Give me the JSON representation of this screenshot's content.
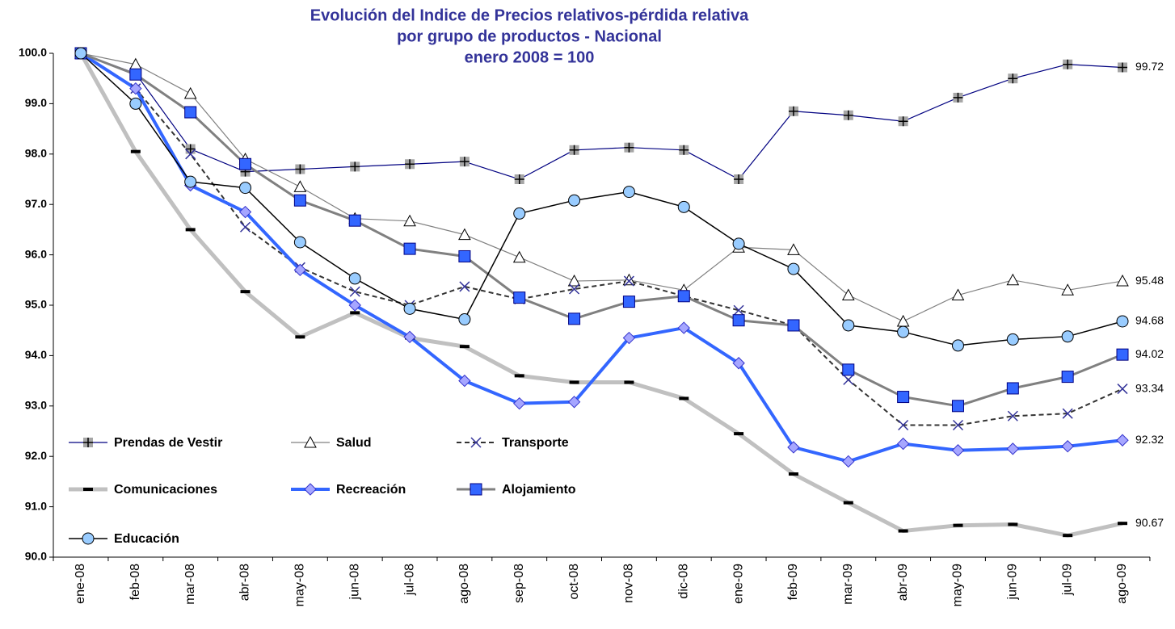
{
  "chart_data": {
    "type": "line",
    "title": [
      "Evolución del Indice de Precios relativos-pérdida relativa",
      "por grupo de productos - Nacional",
      "enero 2008 = 100"
    ],
    "categories": [
      "ene-08",
      "feb-08",
      "mar-08",
      "abr-08",
      "may-08",
      "jun-08",
      "jul-08",
      "ago-08",
      "sep-08",
      "oct-08",
      "nov-08",
      "dic-08",
      "ene-09",
      "feb-09",
      "mar-09",
      "abr-09",
      "may-09",
      "jun-09",
      "jul-09",
      "ago-09"
    ],
    "ylim": [
      90,
      100
    ],
    "yticks": [
      {
        "value": 90,
        "label": "90.0"
      },
      {
        "value": 91,
        "label": "91.0"
      },
      {
        "value": 92,
        "label": "92.0"
      },
      {
        "value": 93,
        "label": "93.0"
      },
      {
        "value": 94,
        "label": "94.0"
      },
      {
        "value": 95,
        "label": "95.0"
      },
      {
        "value": 96,
        "label": "96.0"
      },
      {
        "value": 97,
        "label": "97.0"
      },
      {
        "value": 98,
        "label": "98.0"
      },
      {
        "value": 99,
        "label": "99.0"
      },
      {
        "value": 100,
        "label": "100.0"
      }
    ],
    "grid": false,
    "legend": "lower left",
    "label_last": true,
    "series": [
      {
        "name": "Prendas de Vestir",
        "color": "#000080",
        "line_width": 1.2,
        "dash": false,
        "marker": "plus-square",
        "marker_color": "#a6a6a6",
        "values": [
          100,
          99.6,
          98.1,
          97.65,
          97.7,
          97.75,
          97.8,
          97.85,
          97.5,
          98.08,
          98.13,
          98.08,
          97.5,
          98.85,
          98.77,
          98.65,
          99.12,
          99.5,
          99.78,
          99.72
        ]
      },
      {
        "name": "Salud",
        "color": "#808080",
        "line_width": 1.2,
        "dash": false,
        "marker": "triangle",
        "marker_color": "#ffffff",
        "values": [
          100,
          99.78,
          99.2,
          97.9,
          97.35,
          96.72,
          96.67,
          96.4,
          95.95,
          95.48,
          95.5,
          95.3,
          96.15,
          96.1,
          95.2,
          94.68,
          95.2,
          95.5,
          95.3,
          95.48
        ]
      },
      {
        "name": "Transporte",
        "color": "#333333",
        "line_width": 2,
        "dash": true,
        "marker": "x",
        "marker_color": "#333399",
        "values": [
          100,
          99.3,
          98.0,
          96.55,
          95.75,
          95.27,
          95.0,
          95.37,
          95.12,
          95.32,
          95.48,
          95.18,
          94.9,
          94.6,
          93.52,
          92.62,
          92.62,
          92.8,
          92.85,
          93.34
        ]
      },
      {
        "name": "Comunicaciones",
        "color": "#c0c0c0",
        "line_width": 5,
        "dash": false,
        "marker": "dash",
        "marker_color": "#000000",
        "values": [
          100,
          98.05,
          96.5,
          95.27,
          94.37,
          94.85,
          94.35,
          94.18,
          93.6,
          93.47,
          93.47,
          93.15,
          92.45,
          91.65,
          91.08,
          90.52,
          90.63,
          90.65,
          90.43,
          90.67
        ]
      },
      {
        "name": "Recreación",
        "color": "#3366ff",
        "line_width": 4,
        "dash": false,
        "marker": "diamond",
        "marker_color": "#a6a6ff",
        "values": [
          100,
          99.3,
          97.38,
          96.85,
          95.7,
          95.0,
          94.37,
          93.5,
          93.05,
          93.08,
          94.35,
          94.55,
          93.85,
          92.18,
          91.9,
          92.25,
          92.12,
          92.15,
          92.2,
          92.32
        ]
      },
      {
        "name": "Alojamiento",
        "color": "#808080",
        "line_width": 3,
        "dash": false,
        "marker": "square",
        "marker_color": "#3366ff",
        "values": [
          100,
          99.58,
          98.83,
          97.8,
          97.08,
          96.68,
          96.12,
          95.97,
          95.15,
          94.73,
          95.07,
          95.18,
          94.7,
          94.6,
          93.72,
          93.18,
          93.0,
          93.35,
          93.58,
          94.02
        ]
      },
      {
        "name": "Educación",
        "color": "#000000",
        "line_width": 1.5,
        "dash": false,
        "marker": "circle",
        "marker_color": "#99ccff",
        "values": [
          100,
          99.0,
          97.45,
          97.33,
          96.25,
          95.53,
          94.93,
          94.72,
          96.82,
          97.08,
          97.25,
          96.95,
          96.22,
          95.72,
          94.6,
          94.47,
          94.2,
          94.32,
          94.38,
          94.68
        ]
      }
    ]
  }
}
